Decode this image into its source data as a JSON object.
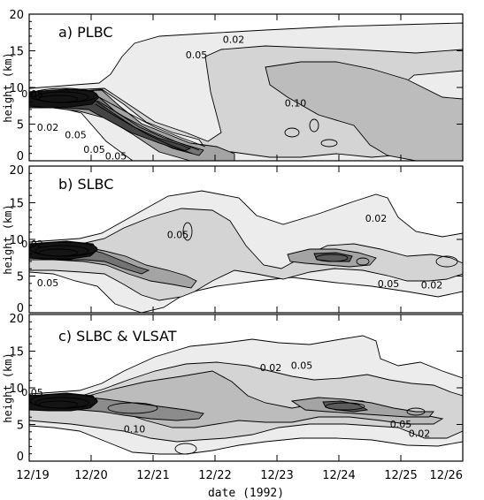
{
  "chart_data": {
    "type": "contour",
    "xlabel": "date (1992)",
    "x_ticks": [
      "12/19",
      "12/20",
      "12/21",
      "12/22",
      "12/23",
      "12/24",
      "12/25",
      "12/26"
    ],
    "xlim": [
      "12/19",
      "12/26"
    ],
    "panels": [
      {
        "title": "a)   PLBC",
        "ylabel": "height (km)",
        "ylim": [
          0,
          20
        ],
        "y_ticks": [
          "0",
          "5",
          "10",
          "15",
          "20"
        ],
        "levels": [
          0.02,
          0.05,
          0.1
        ],
        "contour_labels": [
          "0.02",
          "0.05",
          "0.10",
          "0.05",
          "0.02",
          "0.05",
          "0.05",
          "0.05"
        ],
        "contour_label_positions": [
          [
            3.3,
            16.1
          ],
          [
            2.7,
            14.0
          ],
          [
            4.3,
            7.4
          ],
          [
            0.05,
            8.7
          ],
          [
            0.3,
            4.1
          ],
          [
            0.75,
            3.1
          ],
          [
            1.05,
            1.1
          ],
          [
            1.4,
            0.2
          ]
        ]
      },
      {
        "title": "b)   SLBC",
        "ylabel": "height (km)",
        "ylim": [
          0,
          20
        ],
        "y_ticks": [
          "0",
          "5",
          "10",
          "15",
          "20"
        ],
        "levels": [
          0.02,
          0.05,
          0.1
        ],
        "contour_labels": [
          "0.05",
          "0.02",
          "0.02",
          "0.02",
          "0.05",
          "0.05"
        ],
        "contour_label_positions": [
          [
            2.4,
            10.2
          ],
          [
            5.6,
            12.4
          ],
          [
            0.05,
            8.9
          ],
          [
            6.5,
            3.3
          ],
          [
            5.8,
            3.5
          ],
          [
            0.3,
            3.6
          ]
        ]
      },
      {
        "title": "c)   SLBC & VLSAT",
        "ylabel": "height (km)",
        "ylim": [
          0,
          20
        ],
        "y_ticks": [
          "0",
          "5",
          "10",
          "15",
          "20"
        ],
        "levels": [
          0.02,
          0.05,
          0.1
        ],
        "contour_labels": [
          "0.02",
          "0.05",
          "0.10",
          "0.05",
          "0.02",
          "0.05"
        ],
        "contour_label_positions": [
          [
            3.9,
            12.3
          ],
          [
            4.4,
            12.6
          ],
          [
            1.7,
            3.9
          ],
          [
            6.0,
            4.6
          ],
          [
            6.3,
            3.3
          ],
          [
            0.05,
            8.9
          ]
        ]
      }
    ],
    "grayscale": [
      "#ffffff",
      "#ececec",
      "#d4d4d4",
      "#bcbcbc",
      "#a4a4a4",
      "#8c8c8c",
      "#747474",
      "#5c5c5c",
      "#444444",
      "#2c2c2c",
      "#141414"
    ]
  }
}
